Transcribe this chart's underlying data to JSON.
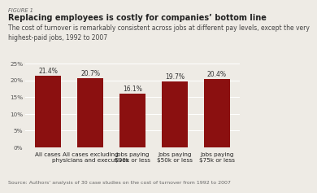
{
  "title": "Replacing employees is costly for companies’ bottom line",
  "figure_label": "FIGURE 1",
  "subtitle": "The cost of turnover is remarkably consistent across jobs at different pay levels, except the very\nhighest-paid jobs, 1992 to 2007",
  "source": "Source: Authors’ analysis of 30 case studies on the cost of turnover from 1992 to 2007",
  "categories": [
    "All cases",
    "All cases excluding\nphysicians and executives",
    "Jobs paying\n$30k or less",
    "Jobs paying\n$50k or less",
    "Jobs paying\n$75k or less"
  ],
  "values": [
    21.4,
    20.7,
    16.1,
    19.7,
    20.4
  ],
  "bar_color": "#8B1010",
  "ylim": [
    0,
    25
  ],
  "yticks": [
    0,
    5,
    10,
    15,
    20,
    25
  ],
  "yticklabels": [
    "0%",
    "5%",
    "10%",
    "15%",
    "20%",
    "25%"
  ],
  "bar_width": 0.62,
  "background_color": "#eeebe5",
  "title_fontsize": 7.0,
  "subtitle_fontsize": 5.5,
  "label_fontsize": 5.2,
  "value_fontsize": 5.5,
  "source_fontsize": 4.5,
  "figure_label_fontsize": 4.8,
  "grid_color": "#ffffff",
  "tick_label_color": "#555555",
  "bar_label_color": "#333333",
  "text_color": "#222222"
}
